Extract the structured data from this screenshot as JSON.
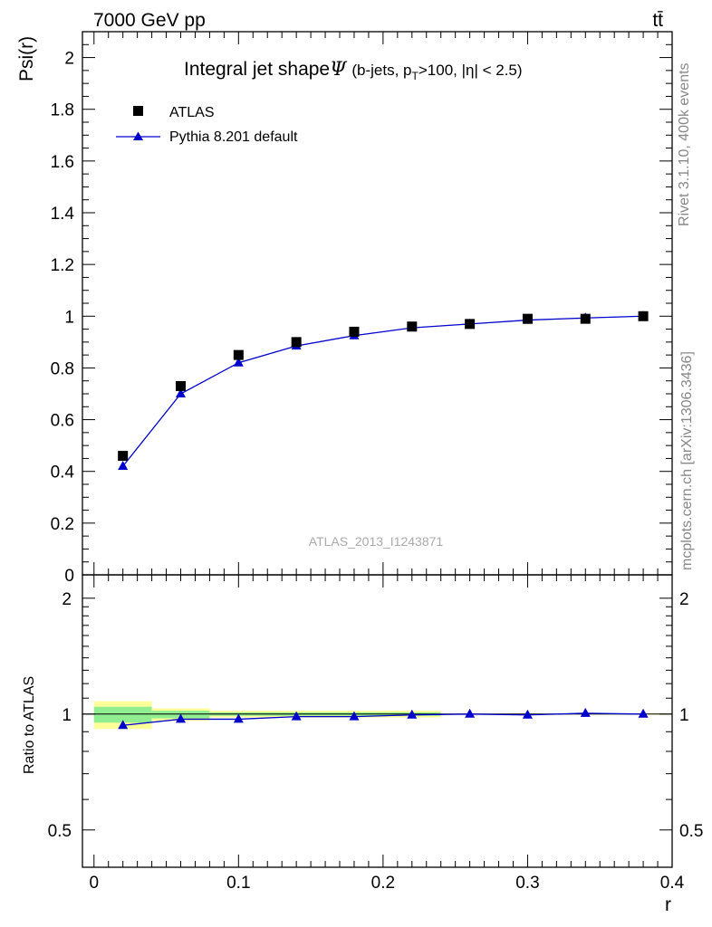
{
  "header": {
    "energy_label": "7000 GeV pp",
    "process_label": "tt̄",
    "side_label_events": "Rivet 3.1.10,  400k events",
    "side_label_source": "mcplots.cern.ch [arXiv:1306.3436]"
  },
  "chart_data": [
    {
      "type": "scatter",
      "title": "Integral jet shape",
      "title_symbol": "Ψ",
      "subtitle_pre": "(b-jets, p",
      "subtitle_sub": "T",
      "subtitle_post": ">100, |η| < 2.5)",
      "analysis_label": "ATLAS_2013_I1243871",
      "ylabel": "Psi(r)",
      "xlabel": "",
      "xlim": [
        -0.008,
        0.4
      ],
      "ylim": [
        0,
        2.1
      ],
      "yticks": [
        0,
        0.2,
        0.4,
        0.6,
        0.8,
        1,
        1.2,
        1.4,
        1.6,
        1.8,
        2
      ],
      "ytick_labels": [
        "0",
        "0.2",
        "0.4",
        "0.6",
        "0.8",
        "1",
        "1.2",
        "1.4",
        "1.6",
        "1.8",
        "2"
      ],
      "legend_position": "top-left",
      "x": [
        0.02,
        0.06,
        0.1,
        0.14,
        0.18,
        0.22,
        0.26,
        0.3,
        0.34,
        0.38
      ],
      "series": [
        {
          "name": "ATLAS",
          "marker": "square",
          "color": "#000000",
          "values": [
            0.46,
            0.73,
            0.85,
            0.9,
            0.94,
            0.96,
            0.97,
            0.99,
            0.99,
            1.0
          ]
        },
        {
          "name": "Pythia 8.201 default",
          "marker": "triangle",
          "color": "#0000cc",
          "values": [
            0.42,
            0.7,
            0.82,
            0.885,
            0.925,
            0.955,
            0.97,
            0.985,
            0.993,
            1.0
          ]
        }
      ]
    },
    {
      "type": "line",
      "ylabel": "Ratio to ATLAS",
      "xlabel": "r",
      "xlim": [
        -0.008,
        0.4
      ],
      "ylim": [
        0.4,
        2.3
      ],
      "scale": "log",
      "yticks": [
        0.5,
        1,
        2
      ],
      "ytick_labels": [
        "0.5",
        "1",
        "2"
      ],
      "xticks": [
        0,
        0.1,
        0.2,
        0.3,
        0.4
      ],
      "xtick_labels": [
        "0",
        "0.1",
        "0.2",
        "0.3",
        "0.4"
      ],
      "x": [
        0.02,
        0.06,
        0.1,
        0.14,
        0.18,
        0.22,
        0.26,
        0.3,
        0.34,
        0.38
      ],
      "values": [
        0.935,
        0.97,
        0.97,
        0.985,
        0.985,
        0.995,
        1.0,
        0.995,
        1.005,
        1.0
      ],
      "uncertainty_bands": [
        {
          "x0": 0.0,
          "x1": 0.04,
          "stat_lo": 0.95,
          "stat_hi": 1.045,
          "tot_lo": 0.915,
          "tot_hi": 1.08
        },
        {
          "x0": 0.04,
          "x1": 0.08,
          "stat_lo": 0.975,
          "stat_hi": 1.02,
          "tot_lo": 0.96,
          "tot_hi": 1.035
        },
        {
          "x0": 0.08,
          "x1": 0.24,
          "stat_lo": 0.99,
          "stat_hi": 1.01,
          "tot_lo": 0.98,
          "tot_hi": 1.02
        },
        {
          "x0": 0.24,
          "x1": 0.4,
          "stat_lo": 0.998,
          "stat_hi": 1.002,
          "tot_lo": 0.996,
          "tot_hi": 1.004
        }
      ],
      "colors": {
        "stat_band": "#90ee90",
        "total_band": "#ffff99",
        "mc": "#0000cc"
      }
    }
  ]
}
